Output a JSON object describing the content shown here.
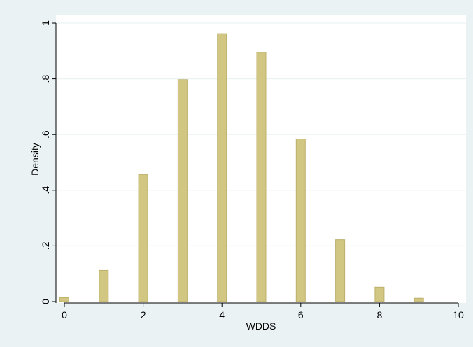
{
  "chart_data": {
    "type": "bar",
    "title": "",
    "xlabel": "WDDS",
    "ylabel": "Density",
    "x": [
      0,
      1,
      2,
      3,
      4,
      5,
      6,
      7,
      8,
      9
    ],
    "values": [
      0.014,
      0.112,
      0.457,
      0.797,
      0.962,
      0.895,
      0.584,
      0.222,
      0.052,
      0.012
    ],
    "xlim": [
      0,
      10
    ],
    "ylim": [
      0,
      1
    ],
    "x_ticks": [
      "0",
      "2",
      "4",
      "6",
      "8",
      "10"
    ],
    "y_ticks": [
      "0",
      ".2",
      ".4",
      ".6",
      ".8",
      "1"
    ],
    "grid": true,
    "legend": "none",
    "colors": {
      "outer_background": "#eaf2f3",
      "plot_background": "#ffffff",
      "bar_fill": "#d2c683",
      "bar_stroke": "#bdb06a",
      "grid": "#eaf2f3",
      "axis": "#000000"
    }
  }
}
